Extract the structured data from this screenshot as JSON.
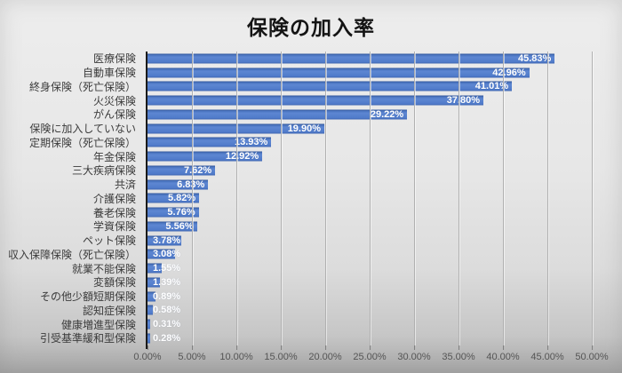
{
  "window": {
    "title": "保険の加入率"
  },
  "chart_data": {
    "type": "bar",
    "orientation": "horizontal",
    "title": "保険の加入率",
    "categories": [
      "医療保険",
      "自動車保険",
      "終身保険（死亡保険）",
      "火災保険",
      "がん保険",
      "保険に加入していない",
      "定期保険（死亡保険）",
      "年金保険",
      "三大疾病保険",
      "共済",
      "介護保険",
      "養老保険",
      "学資保険",
      "ペット保険",
      "収入保障保険（死亡保険）",
      "就業不能保険",
      "変額保険",
      "その他少額短期保険",
      "認知症保険",
      "健康増進型保険",
      "引受基準緩和型保険"
    ],
    "values": [
      45.83,
      42.96,
      41.01,
      37.8,
      29.22,
      19.9,
      13.93,
      12.92,
      7.62,
      6.83,
      5.82,
      5.76,
      5.56,
      3.78,
      3.08,
      1.55,
      1.39,
      0.89,
      0.58,
      0.31,
      0.28
    ],
    "value_labels": [
      "45.83%",
      "42.96%",
      "41.01%",
      "37.80%",
      "29.22%",
      "19.90%",
      "13.93%",
      "12.92%",
      "7.62%",
      "6.83%",
      "5.82%",
      "5.76%",
      "5.56%",
      "3.78%",
      "3.08%",
      "1.55%",
      "1.39%",
      "0.89%",
      "0.58%",
      "0.31%",
      "0.28%"
    ],
    "xlabel": "",
    "ylabel": "",
    "xlim": [
      0,
      50
    ],
    "x_tick_step": 5,
    "x_ticks": [
      "0.00%",
      "5.00%",
      "10.00%",
      "15.00%",
      "20.00%",
      "25.00%",
      "30.00%",
      "35.00%",
      "40.00%",
      "45.00%",
      "50.00%"
    ],
    "grid": true,
    "legend": false,
    "bar_color": "#4472C4",
    "data_label_color": "#FFFFFF",
    "axis_line_color": "#1A1A1A",
    "gridline_color": "#B0B0B0"
  }
}
